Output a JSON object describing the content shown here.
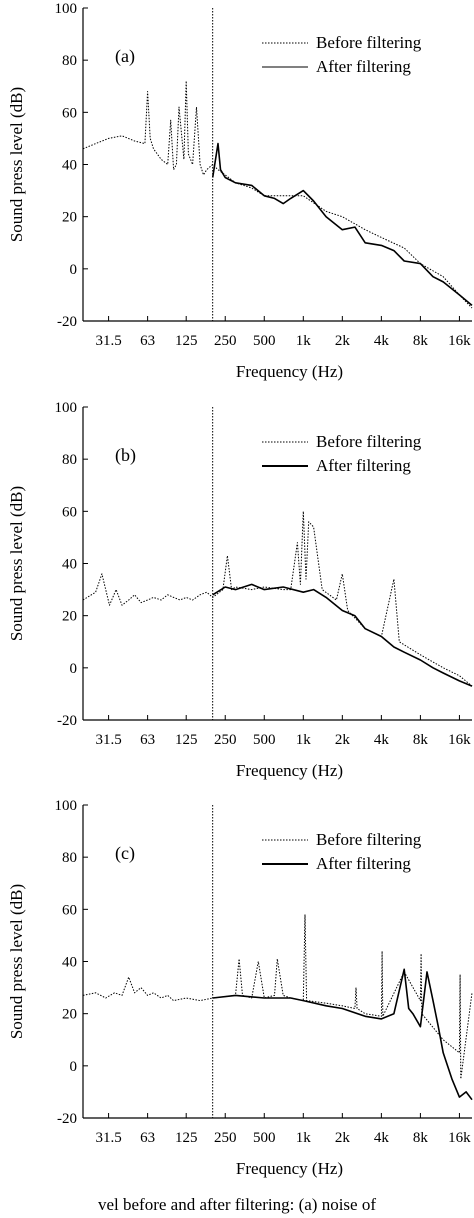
{
  "caption": "vel before and after filtering: (a) noise of",
  "chart_data": [
    {
      "type": "line",
      "panel_label": "(a)",
      "xlabel": "Frequency  (Hz)",
      "ylabel": "Sound press level  (dB)",
      "x_scale": "log",
      "xlim": [
        20,
        20000
      ],
      "ylim": [
        -20,
        100
      ],
      "yticks": [
        -20,
        0,
        20,
        40,
        60,
        80,
        100
      ],
      "xtick_values": [
        31.5,
        63,
        125,
        250,
        500,
        1000,
        2000,
        4000,
        8000,
        16000
      ],
      "xtick_labels": [
        "31.5",
        "63",
        "125",
        "250",
        "500",
        "1k",
        "2k",
        "4k",
        "8k",
        "16k"
      ],
      "cutoff_x": 200,
      "legend": [
        "Before filtering",
        "After filtering"
      ],
      "legend_position": "top-right",
      "series": [
        {
          "name": "Before filtering",
          "style": "dotted",
          "x": [
            20,
            25,
            31.5,
            40,
            50,
            60,
            63,
            66,
            70,
            80,
            90,
            95,
            100,
            105,
            110,
            120,
            125,
            130,
            140,
            150,
            160,
            170,
            180,
            200,
            220,
            250,
            300,
            400,
            500,
            700,
            1000,
            1500,
            2000,
            3000,
            4000,
            6000,
            8000,
            12000,
            16000,
            20000
          ],
          "y": [
            46,
            48,
            50,
            51,
            49,
            48,
            68,
            50,
            46,
            42,
            40,
            57,
            38,
            40,
            62,
            42,
            72,
            44,
            40,
            62,
            40,
            36,
            38,
            40,
            38,
            36,
            33,
            31,
            28,
            28,
            28,
            22,
            20,
            15,
            12,
            8,
            2,
            -3,
            -10,
            -15
          ]
        },
        {
          "name": "After filtering",
          "style": "solid",
          "x": [
            200,
            220,
            230,
            250,
            300,
            400,
            500,
            600,
            700,
            800,
            1000,
            1200,
            1500,
            2000,
            2500,
            3000,
            4000,
            5000,
            6000,
            8000,
            10000,
            12000,
            16000,
            20000
          ],
          "y": [
            35,
            48,
            38,
            35,
            33,
            32,
            28,
            27,
            25,
            27,
            30,
            26,
            20,
            15,
            16,
            10,
            9,
            7,
            3,
            2,
            -3,
            -5,
            -10,
            -14
          ]
        }
      ]
    },
    {
      "type": "line",
      "panel_label": "(b)",
      "xlabel": "Frequency  (Hz)",
      "ylabel": "Sound press level  (dB)",
      "x_scale": "log",
      "xlim": [
        20,
        20000
      ],
      "ylim": [
        -20,
        100
      ],
      "yticks": [
        -20,
        0,
        20,
        40,
        60,
        80,
        100
      ],
      "xtick_values": [
        31.5,
        63,
        125,
        250,
        500,
        1000,
        2000,
        4000,
        8000,
        16000
      ],
      "xtick_labels": [
        "31.5",
        "63",
        "125",
        "250",
        "500",
        "1k",
        "2k",
        "4k",
        "8k",
        "16k"
      ],
      "cutoff_x": 200,
      "legend": [
        "Before filtering",
        "After filtering"
      ],
      "legend_position": "top-right",
      "series": [
        {
          "name": "Before filtering",
          "style": "dotted",
          "x": [
            20,
            25,
            28,
            32,
            36,
            40,
            45,
            50,
            56,
            63,
            70,
            80,
            90,
            100,
            112,
            125,
            140,
            160,
            180,
            200,
            240,
            260,
            280,
            300,
            400,
            500,
            700,
            800,
            900,
            950,
            1000,
            1050,
            1100,
            1200,
            1400,
            1800,
            2000,
            2200,
            3000,
            4000,
            5000,
            5500,
            8000,
            12000,
            16000,
            20000
          ],
          "y": [
            26,
            29,
            36,
            24,
            30,
            24,
            26,
            28,
            25,
            26,
            27,
            26,
            28,
            27,
            26,
            27,
            26,
            28,
            29,
            27,
            30,
            43,
            30,
            31,
            30,
            31,
            30,
            30,
            48,
            32,
            60,
            34,
            56,
            54,
            30,
            26,
            36,
            22,
            15,
            12,
            34,
            10,
            5,
            0,
            -3,
            -7
          ]
        },
        {
          "name": "After filtering",
          "style": "solid",
          "x": [
            200,
            250,
            300,
            400,
            500,
            700,
            1000,
            1200,
            1500,
            2000,
            2500,
            3000,
            4000,
            5000,
            6000,
            8000,
            10000,
            12000,
            16000,
            20000
          ],
          "y": [
            28,
            31,
            30,
            32,
            30,
            31,
            29,
            30,
            27,
            22,
            20,
            15,
            12,
            8,
            6,
            3,
            0,
            -2,
            -5,
            -7
          ]
        }
      ]
    },
    {
      "type": "line",
      "panel_label": "(c)",
      "xlabel": "Frequency  (Hz)",
      "ylabel": "Sound press level  (dB)",
      "x_scale": "log",
      "xlim": [
        20,
        20000
      ],
      "ylim": [
        -20,
        100
      ],
      "yticks": [
        -20,
        0,
        20,
        40,
        60,
        80,
        100
      ],
      "xtick_values": [
        31.5,
        63,
        125,
        250,
        500,
        1000,
        2000,
        4000,
        8000,
        16000
      ],
      "xtick_labels": [
        "31.5",
        "63",
        "125",
        "250",
        "500",
        "1k",
        "2k",
        "4k",
        "8k",
        "16k"
      ],
      "cutoff_x": 200,
      "legend": [
        "Before filtering",
        "After filtering"
      ],
      "legend_position": "top-right",
      "series": [
        {
          "name": "Before filtering",
          "style": "dotted",
          "x": [
            20,
            25,
            30,
            35,
            40,
            45,
            50,
            56,
            63,
            70,
            80,
            90,
            100,
            125,
            160,
            200,
            300,
            320,
            340,
            400,
            450,
            500,
            600,
            630,
            700,
            800,
            1000,
            1030,
            1060,
            1500,
            2000,
            2500,
            2550,
            2600,
            3000,
            4000,
            4050,
            4100,
            6000,
            8000,
            8100,
            8200,
            12000,
            16000,
            16200,
            16400,
            20000
          ],
          "y": [
            27,
            28,
            26,
            28,
            27,
            34,
            28,
            30,
            27,
            28,
            26,
            27,
            25,
            26,
            25,
            26,
            27,
            41,
            27,
            26,
            40,
            26,
            27,
            41,
            27,
            26,
            25,
            58,
            25,
            24,
            23,
            22,
            30,
            22,
            20,
            19,
            44,
            19,
            36,
            25,
            43,
            20,
            10,
            5,
            35,
            -5,
            28
          ]
        },
        {
          "name": "After filtering",
          "style": "solid",
          "x": [
            200,
            300,
            500,
            800,
            1000,
            1500,
            2000,
            3000,
            4000,
            5000,
            6000,
            6500,
            7000,
            8000,
            9000,
            10000,
            11000,
            12000,
            14000,
            16000,
            18000,
            20000
          ],
          "y": [
            26,
            27,
            26,
            26,
            25,
            23,
            22,
            19,
            18,
            20,
            37,
            22,
            20,
            15,
            36,
            25,
            15,
            5,
            -5,
            -12,
            -10,
            -13
          ]
        }
      ]
    }
  ]
}
